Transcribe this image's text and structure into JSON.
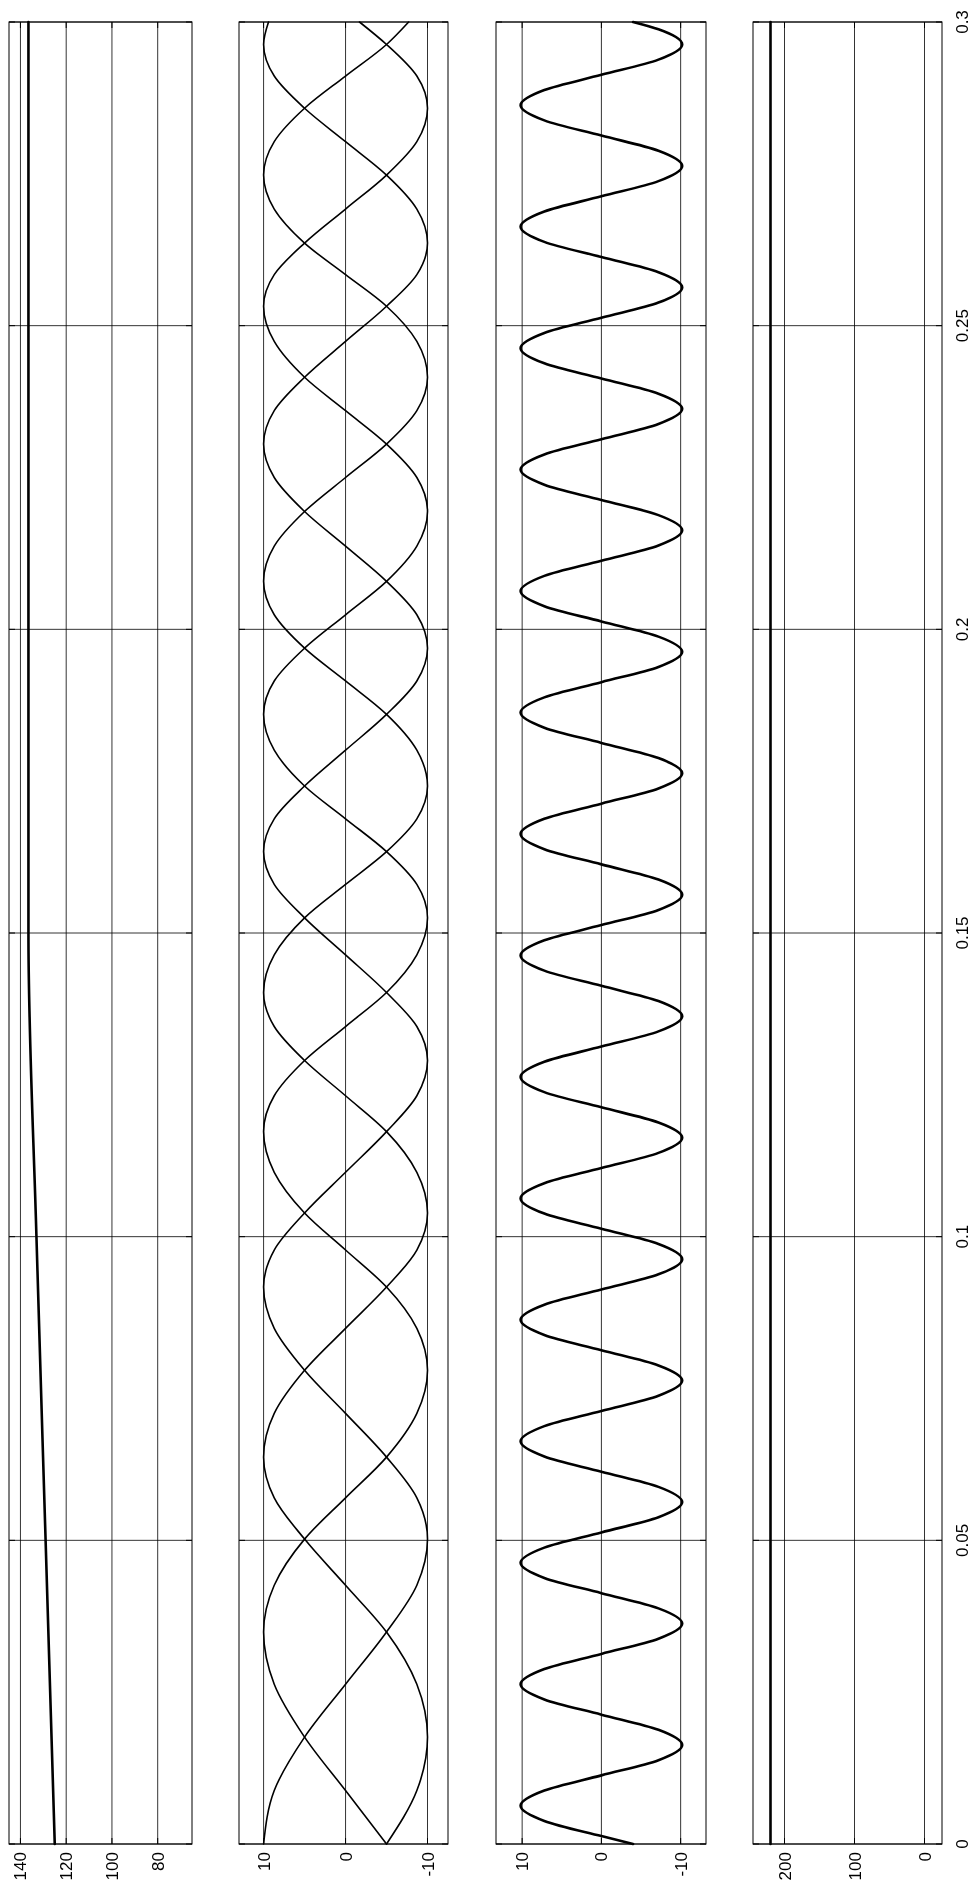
{
  "chart_data": [
    {
      "type": "line",
      "series": [
        {
          "color": "#000000",
          "x": [
            125,
            129,
            133,
            136.5,
            136.5
          ],
          "values": [
            0,
            0.05,
            0.1,
            0.15,
            0.3
          ]
        }
      ],
      "ylim": [
        0,
        0.3
      ],
      "yticks": [
        0,
        0.05,
        0.1,
        0.15,
        0.2,
        0.25,
        0.3
      ],
      "xlim": [
        145,
        65
      ],
      "xticks": [
        140,
        120,
        100,
        80
      ],
      "grid": true,
      "tick_labels": "x"
    },
    {
      "type": "line",
      "series": [
        {
          "color": "#000000",
          "values": [
            0,
            0.0088,
            0.0176,
            0.0263,
            0.0349,
            0.0426,
            0.0502,
            0.057,
            0.0637,
            0.0709,
            0.078,
            0.0849,
            0.0917,
            0.0978,
            0.1039,
            0.1106,
            0.1173,
            0.1232,
            0.129,
            0.1346,
            0.1402,
            0.1464,
            0.1525,
            0.158,
            0.1634,
            0.1688,
            0.1742,
            0.1801,
            0.186,
            0.1915,
            0.1969,
            0.2024,
            0.2079,
            0.2137,
            0.2194,
            0.225,
            0.2305,
            0.236,
            0.2415,
            0.2474,
            0.2532,
            0.2584,
            0.2636,
            0.2692,
            0.2748,
            0.2803,
            0.2858,
            0.2911,
            0.2963,
            0.3
          ],
          "x": [
            10,
            8.7,
            5,
            0,
            -5,
            -8.7,
            -10,
            -8.7,
            -5,
            0,
            5,
            8.7,
            10,
            8.7,
            5,
            0,
            -5,
            -8.7,
            -10,
            -8.7,
            -5,
            0,
            5,
            8.7,
            10,
            8.7,
            5,
            0,
            -5,
            -8.7,
            -10,
            -8.7,
            -5,
            0,
            5,
            8.7,
            10,
            8.7,
            5,
            0,
            -5,
            -8.7,
            -10,
            -8.7,
            -5,
            0,
            5,
            8.7,
            10,
            9.4
          ]
        },
        {
          "color": "#000000",
          "values": [
            0,
            0.0088,
            0.0176,
            0.0263,
            0.0349,
            0.0426,
            0.0502,
            0.057,
            0.0637,
            0.0709,
            0.078,
            0.0849,
            0.0917,
            0.0978,
            0.1039,
            0.1106,
            0.1173,
            0.1232,
            0.129,
            0.1346,
            0.1402,
            0.1464,
            0.1525,
            0.158,
            0.1634,
            0.1688,
            0.1742,
            0.1801,
            0.186,
            0.1915,
            0.1969,
            0.2024,
            0.2079,
            0.2137,
            0.2194,
            0.225,
            0.2305,
            0.236,
            0.2415,
            0.2474,
            0.2532,
            0.2584,
            0.2636,
            0.2692,
            0.2748,
            0.2803,
            0.2858,
            0.2911,
            0.2963,
            0.3
          ],
          "x": [
            -5,
            0,
            5,
            8.7,
            10,
            8.7,
            5,
            0,
            -5,
            -8.7,
            -10,
            -8.7,
            -5,
            0,
            5,
            8.7,
            10,
            8.7,
            5,
            0,
            -5,
            -8.7,
            -10,
            -8.7,
            -5,
            0,
            5,
            8.7,
            10,
            8.7,
            5,
            0,
            -5,
            -8.7,
            -10,
            -8.7,
            -5,
            0,
            5,
            8.7,
            10,
            8.7,
            5,
            0,
            -5,
            -8.7,
            -10,
            -8.7,
            -5,
            -1.7
          ]
        },
        {
          "color": "#000000",
          "values": [
            0,
            0.0088,
            0.0176,
            0.0263,
            0.0349,
            0.0426,
            0.0502,
            0.057,
            0.0637,
            0.0709,
            0.078,
            0.0849,
            0.0917,
            0.0978,
            0.1039,
            0.1106,
            0.1173,
            0.1232,
            0.129,
            0.1346,
            0.1402,
            0.1464,
            0.1525,
            0.158,
            0.1634,
            0.1688,
            0.1742,
            0.1801,
            0.186,
            0.1915,
            0.1969,
            0.2024,
            0.2079,
            0.2137,
            0.2194,
            0.225,
            0.2305,
            0.236,
            0.2415,
            0.2474,
            0.2532,
            0.2584,
            0.2636,
            0.2692,
            0.2748,
            0.2803,
            0.2858,
            0.2911,
            0.2963,
            0.3
          ],
          "x": [
            -5,
            -8.7,
            -10,
            -8.7,
            -5,
            0,
            5,
            8.7,
            10,
            8.7,
            5,
            0,
            -5,
            -8.7,
            -10,
            -8.7,
            -5,
            0,
            5,
            8.7,
            10,
            8.7,
            5,
            0,
            -5,
            -8.7,
            -10,
            -8.7,
            -5,
            0,
            5,
            8.7,
            10,
            8.7,
            5,
            0,
            -5,
            -8.7,
            -10,
            -8.7,
            -5,
            0,
            5,
            8.7,
            10,
            8.7,
            5,
            0,
            -5,
            -7.7
          ]
        }
      ],
      "ylim": [
        0,
        0.3
      ],
      "yticks": [
        0,
        0.05,
        0.1,
        0.15,
        0.2,
        0.25,
        0.3
      ],
      "xlim": [
        13,
        -12.5
      ],
      "xticks": [
        10,
        0,
        -10
      ],
      "grid": true,
      "tick_labels": "x"
    },
    {
      "type": "line",
      "series": [
        {
          "color": "#000000",
          "values": [
            0,
            0.0013,
            0.0038,
            0.0063,
            0.0088,
            0.0113,
            0.0138,
            0.0163,
            0.0188,
            0.0213,
            0.0238,
            0.0263,
            0.0288,
            0.0313,
            0.0338,
            0.0363,
            0.0388,
            0.0413,
            0.0438,
            0.0463,
            0.0488,
            0.0513,
            0.0538,
            0.0563,
            0.0588,
            0.0613,
            0.0638,
            0.0663,
            0.0688,
            0.0713,
            0.0738,
            0.0763,
            0.0788,
            0.0813,
            0.0838,
            0.0863,
            0.0888,
            0.0913,
            0.0938,
            0.0963,
            0.0988,
            0.1013,
            0.1038,
            0.1063,
            0.1088,
            0.1113,
            0.1138,
            0.1163,
            0.1188,
            0.1213,
            0.1238,
            0.1263,
            0.1288,
            0.1313,
            0.1338,
            0.1363,
            0.1388,
            0.1413,
            0.1438,
            0.1463,
            0.1488,
            0.1513,
            0.1538,
            0.1563,
            0.1588,
            0.1613,
            0.1638,
            0.1663,
            0.1688,
            0.1713,
            0.1738,
            0.1763,
            0.1788,
            0.1813,
            0.1838,
            0.1863,
            0.1888,
            0.1913,
            0.1938,
            0.1963,
            0.1988,
            0.2013,
            0.2038,
            0.2063,
            0.2088,
            0.2113,
            0.2138,
            0.2163,
            0.2188,
            0.2213,
            0.2238,
            0.2263,
            0.2288,
            0.2313,
            0.2338,
            0.2363,
            0.2388,
            0.2413,
            0.2438,
            0.2463,
            0.2488,
            0.2513,
            0.2538,
            0.2563,
            0.2588,
            0.2613,
            0.2638,
            0.2663,
            0.2688,
            0.2713,
            0.2738,
            0.2763,
            0.2788,
            0.2813,
            0.2838,
            0.2863,
            0.2888,
            0.2913,
            0.2938,
            0.2963,
            0.2988,
            0.3
          ],
          "x": [
            -4,
            0,
            7.2,
            10.2,
            7.2,
            0,
            -7.2,
            -10.2,
            -7.2,
            0,
            7.2,
            10.2,
            7.2,
            0,
            -7.2,
            -10.2,
            -7.2,
            0,
            7.2,
            10.2,
            7.2,
            0,
            -7.2,
            -10.2,
            -7.2,
            0,
            7.2,
            10.2,
            7.2,
            0,
            -7.2,
            -10.2,
            -7.2,
            0,
            7.2,
            10.2,
            7.2,
            0,
            -7.2,
            -10.2,
            -7.2,
            0,
            7.2,
            10.2,
            7.2,
            0,
            -7.2,
            -10.2,
            -7.2,
            0,
            7.2,
            10.2,
            7.2,
            0,
            -7.2,
            -10.2,
            -7.2,
            0,
            7.2,
            10.2,
            7.2,
            0,
            -7.2,
            -10.2,
            -7.2,
            0,
            7.2,
            10.2,
            7.2,
            0,
            -7.2,
            -10.2,
            -7.2,
            0,
            7.2,
            10.2,
            7.2,
            0,
            -7.2,
            -10.2,
            -7.2,
            0,
            7.2,
            10.2,
            7.2,
            0,
            -7.2,
            -10.2,
            -7.2,
            0,
            7.2,
            10.2,
            7.2,
            0,
            -7.2,
            -10.2,
            -7.2,
            0,
            7.2,
            10.2,
            7.2,
            0,
            -7.2,
            -10.2,
            -7.2,
            0,
            7.2,
            10.2,
            7.2,
            0,
            -7.2,
            -10.2,
            -7.2,
            0,
            7.2,
            10.2,
            7.2,
            0,
            -7.2,
            -10.2,
            -7.2,
            -4
          ]
        }
      ],
      "ylim": [
        0,
        0.3
      ],
      "yticks": [
        0,
        0.05,
        0.1,
        0.15,
        0.2,
        0.25,
        0.3
      ],
      "xlim": [
        13.3,
        -13.2
      ],
      "xticks": [
        10,
        0,
        -10
      ],
      "grid": true,
      "tick_labels": "x"
    },
    {
      "type": "line",
      "series": [
        {
          "color": "#000000",
          "values": [
            0,
            0.3
          ],
          "x": [
            220,
            220
          ]
        }
      ],
      "ylim": [
        0,
        0.3
      ],
      "yticks": [
        0,
        0.05,
        0.1,
        0.15,
        0.2,
        0.25,
        0.3
      ],
      "xlim": [
        245,
        -25
      ],
      "xticks": [
        200,
        100,
        0
      ],
      "grid": true
    }
  ]
}
